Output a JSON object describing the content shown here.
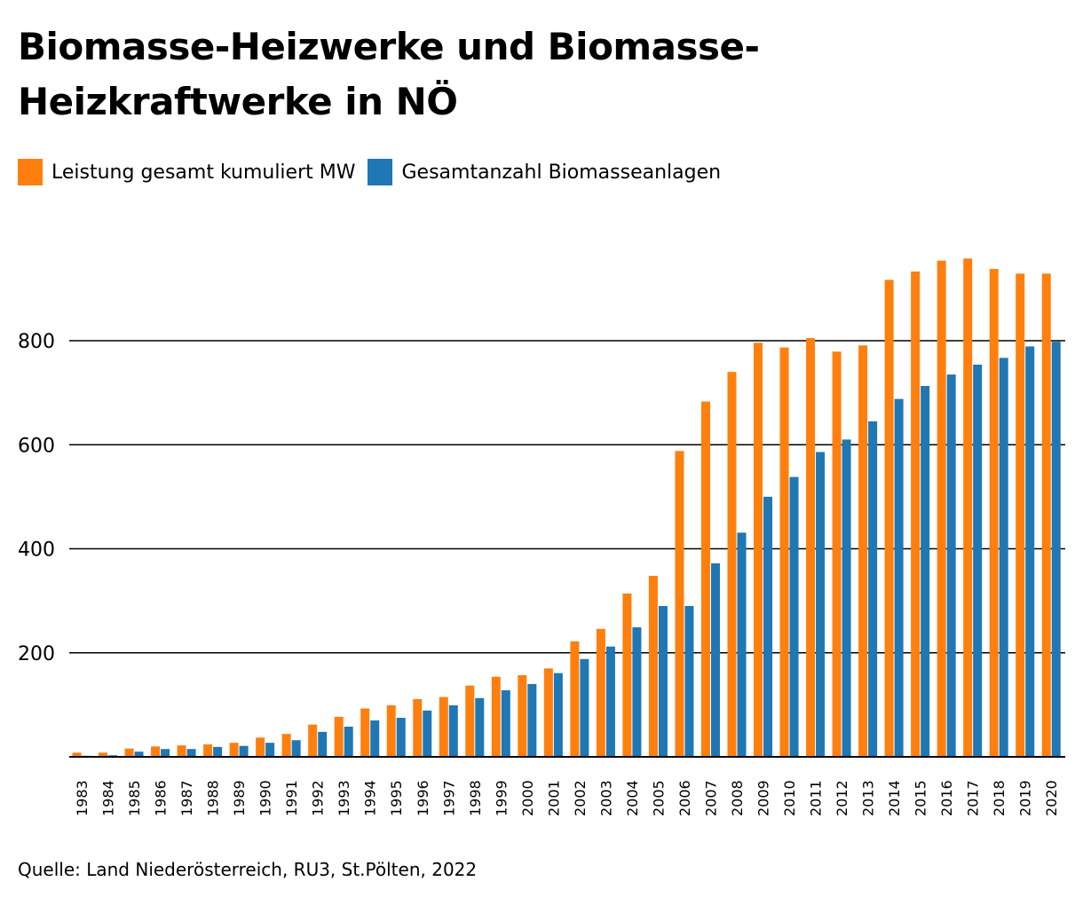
{
  "title": "Biomasse-Heizwerke und Biomasse-Heizkraftwerke in NÖ",
  "source": "Quelle: Land Niederösterreich, RU3, St.Pölten, 2022",
  "colors": {
    "orange": "#FF7F0E",
    "blue": "#1F77B4"
  },
  "chart_data": {
    "type": "bar",
    "title": "Biomasse-Heizwerke und Biomasse-Heizkraftwerke in NÖ",
    "xlabel": "",
    "ylabel": "",
    "ylim": [
      0,
      1000
    ],
    "yticks": [
      200,
      400,
      600,
      800
    ],
    "grid": true,
    "legend_position": "top-left",
    "categories": [
      "1983",
      "1984",
      "1985",
      "1986",
      "1987",
      "1988",
      "1989",
      "1990",
      "1991",
      "1992",
      "1993",
      "1994",
      "1995",
      "1996",
      "1997",
      "1998",
      "1999",
      "2000",
      "2001",
      "2002",
      "2003",
      "2004",
      "2005",
      "2006",
      "2007",
      "2008",
      "2009",
      "2010",
      "2011",
      "2012",
      "2013",
      "2014",
      "2015",
      "2016",
      "2017",
      "2018",
      "2019",
      "2020"
    ],
    "series": [
      {
        "name": "Leistung gesamt kumuliert MW",
        "color": "#FF7F0E",
        "values": [
          8,
          8,
          16,
          20,
          22,
          24,
          27,
          37,
          44,
          62,
          77,
          93,
          99,
          111,
          115,
          137,
          154,
          157,
          170,
          222,
          246,
          314,
          348,
          588,
          683,
          740,
          796,
          787,
          805,
          779,
          791,
          917,
          933,
          954,
          958,
          938,
          929,
          929
        ]
      },
      {
        "name": "Gesamtanzahl Biomasseanlagen",
        "color": "#1F77B4",
        "values": [
          2,
          3,
          10,
          15,
          15,
          19,
          21,
          27,
          32,
          48,
          58,
          70,
          75,
          89,
          99,
          113,
          128,
          140,
          161,
          188,
          212,
          249,
          290,
          290,
          372,
          431,
          500,
          538,
          586,
          610,
          645,
          688,
          713,
          735,
          754,
          767,
          789,
          798
        ]
      }
    ]
  }
}
